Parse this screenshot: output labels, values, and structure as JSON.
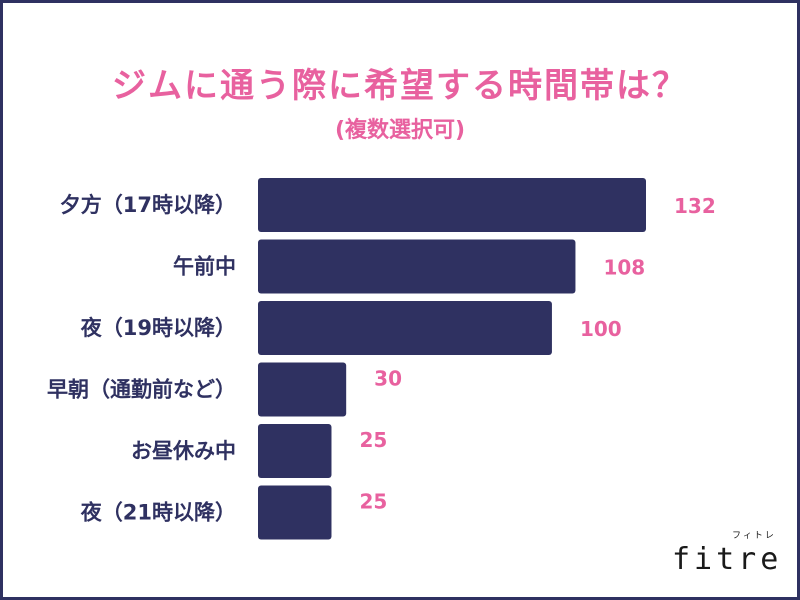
{
  "chart_data": {
    "type": "bar",
    "orientation": "horizontal",
    "title": "ジムに通う際に希望する時間帯は？",
    "subtitle": "(複数選択可)",
    "categories": [
      "夕方（17時以降）",
      "午前中",
      "夜（19時以降）",
      "早朝（通勤前など）",
      "お昼休み中",
      "夜（21時以降）"
    ],
    "values": [
      132,
      108,
      100,
      30,
      25,
      25
    ],
    "xlim": [
      0,
      132
    ],
    "grid": false,
    "legend": "none"
  },
  "colors": {
    "bar": "#2f3161",
    "accent": "#e8619f",
    "frame": "#2f3161"
  },
  "brand": {
    "name": "fitre",
    "kana": "フィトレ"
  }
}
